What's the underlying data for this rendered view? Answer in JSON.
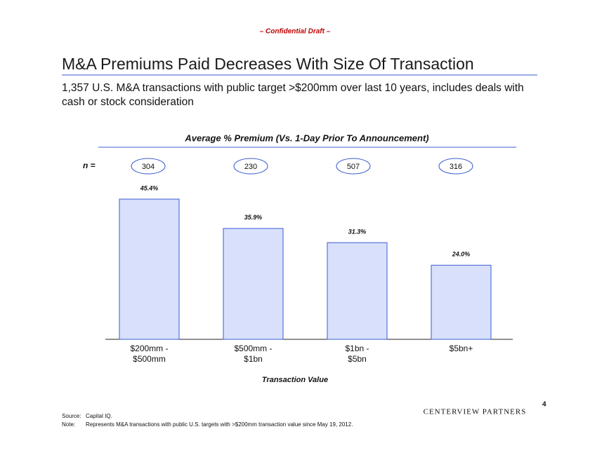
{
  "header": {
    "confidential": "– Confidential Draft –",
    "title": "M&A Premiums Paid Decreases With Size Of Transaction",
    "subtitle": "1,357 U.S. M&A transactions with public target >$200mm over last 10 years, includes deals with cash or stock consideration"
  },
  "chart_data": {
    "type": "bar",
    "title": "Average % Premium (Vs. 1-Day Prior To Announcement)",
    "count_label": "n =",
    "counts": [
      304,
      230,
      507,
      316
    ],
    "categories": [
      "$200mm -\n$500mm",
      "$500mm -\n$1bn",
      "$1bn -\n$5bn",
      "$5bn+"
    ],
    "values": [
      45.4,
      35.9,
      31.3,
      24.0
    ],
    "value_labels": [
      "45.4%",
      "35.9%",
      "31.3%",
      "24.0%"
    ],
    "color": "#d9e0fb",
    "edge_color": "#3a5bd0",
    "x_label": "Transaction Value"
  },
  "footer": {
    "source_label": "Source:",
    "source": "Capital IQ.",
    "note_label": "Note:",
    "note": "Represents M&A transactions with public U.S. targets with >$200mm transaction value since May 19, 2012.",
    "logo": "CENTERVIEW PARTNERS",
    "page": "4"
  }
}
